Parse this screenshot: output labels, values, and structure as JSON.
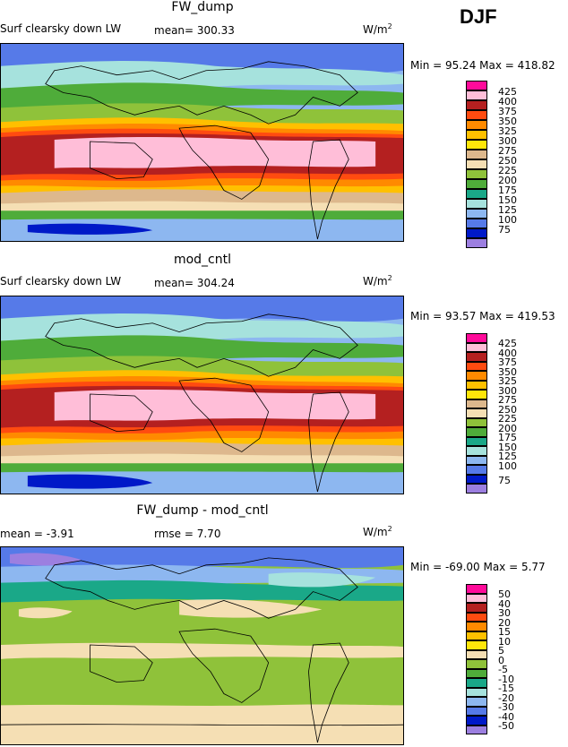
{
  "season": "DJF",
  "panels": [
    {
      "title": "FW_dump",
      "left_label": "Surf clearsky down LW",
      "stat1": "mean= 300.33",
      "stat2": "",
      "units_main": "W/m",
      "units_exp": "2",
      "minmax": "Min =  95.24 Max = 418.82",
      "colorbar": {
        "labels": [
          "425",
          "400",
          "375",
          "350",
          "325",
          "300",
          "275",
          "250",
          "225",
          "200",
          "175",
          "150",
          "125",
          "100",
          "75"
        ],
        "colors": [
          "#ff0b9a",
          "#ffbed8",
          "#b42020",
          "#ff4b10",
          "#ff8a00",
          "#ffc000",
          "#ffe60a",
          "#ddb88d",
          "#f5dfb4",
          "#8fc23a",
          "#4fac3a",
          "#1aa888",
          "#a6e2dd",
          "#8db7f0",
          "#567ae8",
          "#0019c8",
          "#9c7fe0"
        ]
      }
    },
    {
      "title": "mod_cntl",
      "left_label": "Surf clearsky down LW",
      "stat1": "mean= 304.24",
      "stat2": "",
      "units_main": "W/m",
      "units_exp": "2",
      "minmax": "Min =  93.57 Max = 419.53",
      "colorbar": {
        "labels": [
          "425",
          "400",
          "375",
          "350",
          "325",
          "300",
          "275",
          "250",
          "225",
          "200",
          "175",
          "150",
          "125",
          "100",
          "75"
        ],
        "colors": [
          "#ff0b9a",
          "#ffbed8",
          "#b42020",
          "#ff4b10",
          "#ff8a00",
          "#ffc000",
          "#ffe60a",
          "#ddb88d",
          "#f5dfb4",
          "#8fc23a",
          "#4fac3a",
          "#1aa888",
          "#a6e2dd",
          "#8db7f0",
          "#567ae8",
          "#0019c8",
          "#9c7fe0"
        ]
      }
    },
    {
      "title": "FW_dump - mod_cntl",
      "left_label": "mean =  -3.91",
      "stat1": "rmse =   7.70",
      "stat2": "",
      "units_main": "W/m",
      "units_exp": "2",
      "minmax": "Min = -69.00 Max =   5.77",
      "colorbar": {
        "labels": [
          "50",
          "40",
          "30",
          "20",
          "15",
          "10",
          "5",
          "0",
          "-5",
          "-10",
          "-15",
          "-20",
          "-30",
          "-40",
          "-50"
        ],
        "colors": [
          "#ff0b9a",
          "#ffbed8",
          "#b42020",
          "#ff4b10",
          "#ff8a00",
          "#ffc000",
          "#ffe60a",
          "#f5dfb4",
          "#8fc23a",
          "#4fac3a",
          "#1aa888",
          "#a6e2dd",
          "#8db7f0",
          "#567ae8",
          "#0019c8",
          "#9c7fe0",
          "#9c7fe0"
        ]
      }
    }
  ],
  "chart_data": [
    {
      "type": "heatmap",
      "title": "FW_dump",
      "variable": "Surf clearsky down LW",
      "mean": 300.33,
      "min": 95.24,
      "max": 418.82,
      "units": "W/m2",
      "levels": [
        75,
        100,
        125,
        150,
        175,
        200,
        225,
        250,
        275,
        300,
        325,
        350,
        375,
        400,
        425
      ]
    },
    {
      "type": "heatmap",
      "title": "mod_cntl",
      "variable": "Surf clearsky down LW",
      "mean": 304.24,
      "min": 93.57,
      "max": 419.53,
      "units": "W/m2",
      "levels": [
        75,
        100,
        125,
        150,
        175,
        200,
        225,
        250,
        275,
        300,
        325,
        350,
        375,
        400,
        425
      ]
    },
    {
      "type": "heatmap",
      "title": "FW_dump - mod_cntl",
      "mean": -3.91,
      "rmse": 7.7,
      "min": -69.0,
      "max": 5.77,
      "units": "W/m2",
      "levels": [
        -50,
        -40,
        -30,
        -20,
        -15,
        -10,
        -5,
        0,
        5,
        10,
        15,
        20,
        30,
        40,
        50
      ]
    }
  ]
}
